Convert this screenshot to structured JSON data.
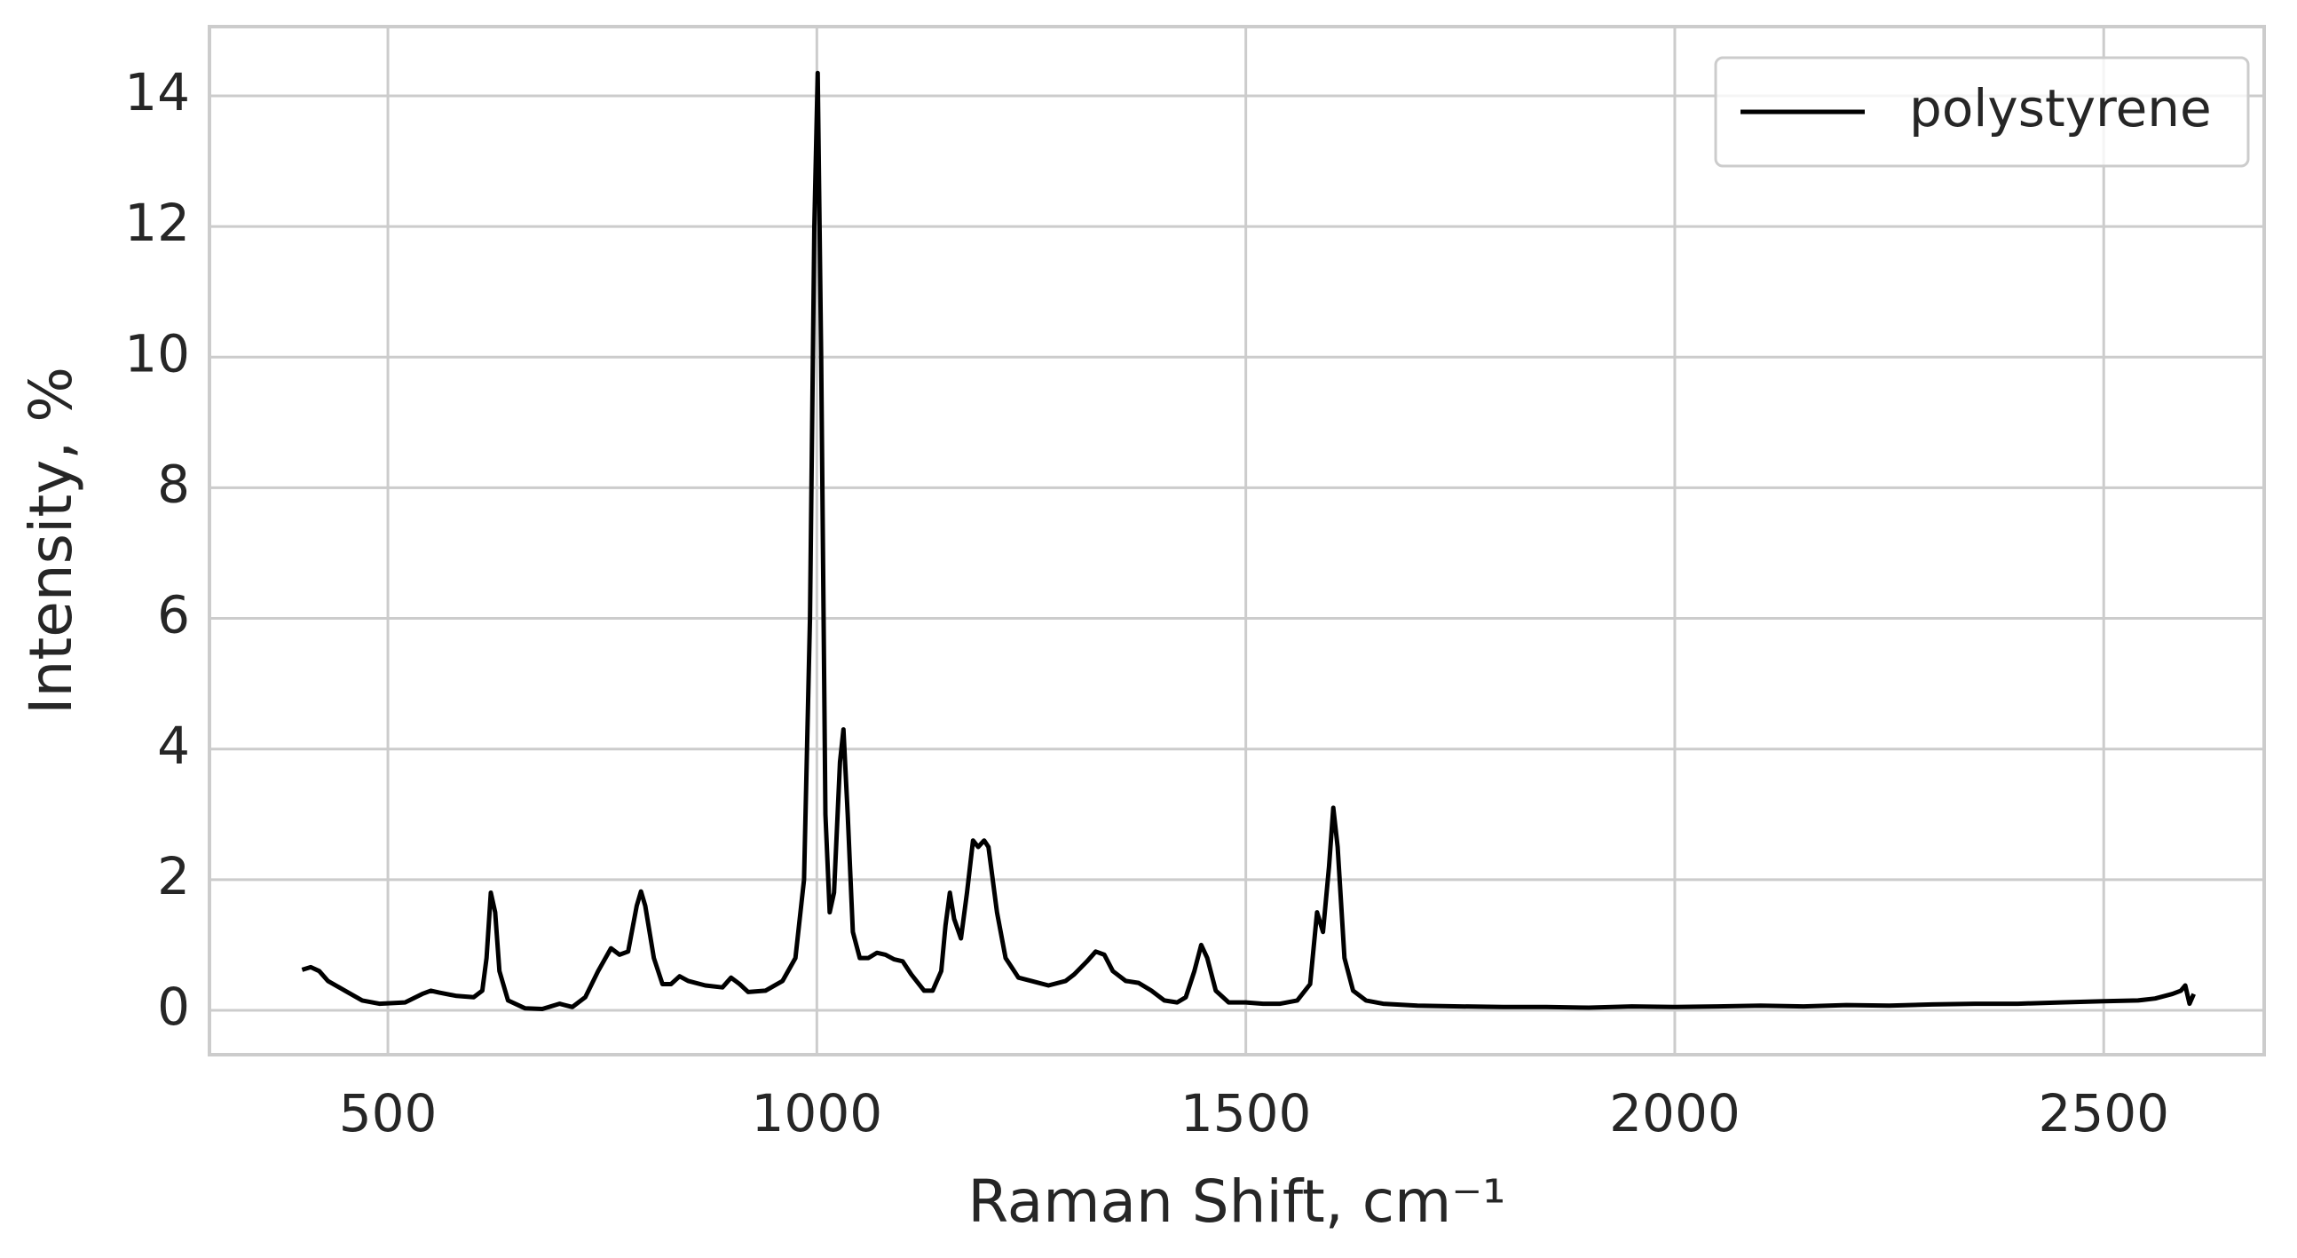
{
  "chart_data": {
    "type": "line",
    "xlabel": "Raman Shift, cm⁻¹",
    "ylabel": "Intensity, %",
    "x": [
      400,
      410,
      420,
      430,
      450,
      470,
      490,
      520,
      540,
      550,
      560,
      580,
      600,
      610,
      615,
      620,
      625,
      630,
      640,
      660,
      680,
      700,
      715,
      730,
      745,
      760,
      770,
      780,
      790,
      795,
      800,
      810,
      820,
      830,
      840,
      850,
      870,
      890,
      900,
      910,
      920,
      940,
      960,
      975,
      985,
      992,
      997,
      1001,
      1005,
      1010,
      1015,
      1020,
      1027,
      1031,
      1036,
      1042,
      1050,
      1060,
      1070,
      1080,
      1090,
      1100,
      1110,
      1125,
      1135,
      1145,
      1150,
      1155,
      1160,
      1168,
      1175,
      1182,
      1188,
      1195,
      1200,
      1210,
      1220,
      1235,
      1250,
      1270,
      1290,
      1300,
      1315,
      1325,
      1335,
      1345,
      1360,
      1375,
      1390,
      1405,
      1420,
      1430,
      1440,
      1448,
      1455,
      1465,
      1480,
      1500,
      1520,
      1540,
      1560,
      1575,
      1583,
      1590,
      1597,
      1602,
      1607,
      1615,
      1625,
      1640,
      1660,
      1700,
      1750,
      1800,
      1850,
      1900,
      1950,
      2000,
      2050,
      2100,
      2150,
      2200,
      2250,
      2300,
      2350,
      2400,
      2450,
      2500,
      2540,
      2560,
      2580,
      2590,
      2595,
      2600,
      2605
    ],
    "series": [
      {
        "name": "polystyrene",
        "color": "#000000",
        "values": [
          0.62,
          0.66,
          0.6,
          0.45,
          0.3,
          0.15,
          0.1,
          0.12,
          0.25,
          0.3,
          0.27,
          0.22,
          0.2,
          0.3,
          0.8,
          1.8,
          1.5,
          0.6,
          0.15,
          0.03,
          0.02,
          0.1,
          0.05,
          0.2,
          0.6,
          0.95,
          0.85,
          0.9,
          1.6,
          1.82,
          1.6,
          0.8,
          0.4,
          0.4,
          0.52,
          0.45,
          0.38,
          0.35,
          0.5,
          0.4,
          0.28,
          0.3,
          0.45,
          0.8,
          2.0,
          6,
          12,
          14.35,
          10,
          3,
          1.5,
          1.8,
          3.8,
          4.3,
          3,
          1.2,
          0.8,
          0.8,
          0.88,
          0.85,
          0.78,
          0.75,
          0.55,
          0.3,
          0.3,
          0.6,
          1.3,
          1.8,
          1.4,
          1.1,
          1.8,
          2.6,
          2.5,
          2.6,
          2.5,
          1.5,
          0.8,
          0.5,
          0.45,
          0.38,
          0.45,
          0.55,
          0.75,
          0.9,
          0.85,
          0.6,
          0.45,
          0.42,
          0.3,
          0.15,
          0.12,
          0.2,
          0.6,
          1.0,
          0.8,
          0.3,
          0.12,
          0.12,
          0.1,
          0.1,
          0.15,
          0.4,
          1.5,
          1.2,
          2.2,
          3.1,
          2.5,
          0.8,
          0.3,
          0.15,
          0.1,
          0.07,
          0.06,
          0.05,
          0.05,
          0.04,
          0.06,
          0.05,
          0.06,
          0.07,
          0.06,
          0.08,
          0.07,
          0.09,
          0.1,
          0.1,
          0.12,
          0.14,
          0.15,
          0.18,
          0.25,
          0.3,
          0.38,
          0.1,
          0.25
        ]
      }
    ],
    "xlim": [
      292,
      2687
    ],
    "ylim": [
      -0.68,
      15.06
    ],
    "xticks": [
      500,
      1000,
      1500,
      2000,
      2500
    ],
    "yticks": [
      0,
      2,
      4,
      6,
      8,
      10,
      12,
      14
    ],
    "grid": true,
    "legend": "upper right"
  }
}
